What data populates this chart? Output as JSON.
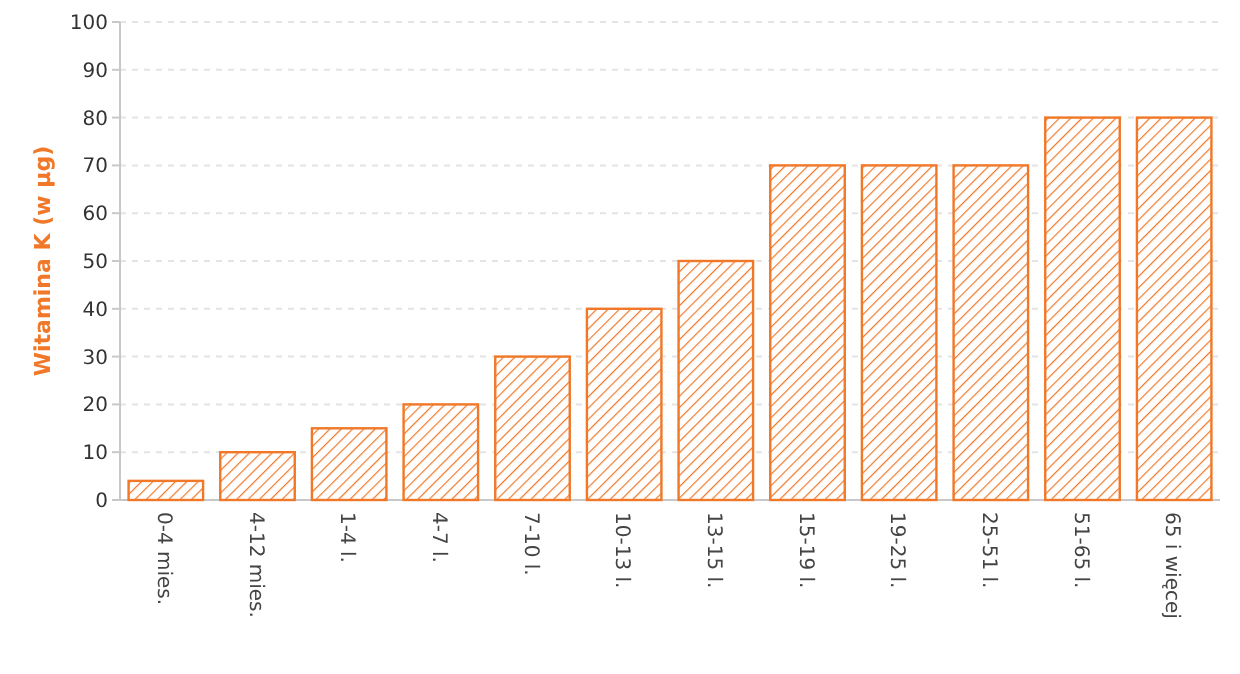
{
  "chart_data": {
    "type": "bar",
    "ylabel": "Witamina K (w µg)",
    "categories": [
      "0-4 mies.",
      "4-12 mies.",
      "1-4 l.",
      "4-7 l.",
      "7-10 l.",
      "10-13 l.",
      "13-15 l.",
      "15-19 l.",
      "19-25 l.",
      "25-51 l.",
      "51-65 l.",
      "65 i więcej"
    ],
    "values": [
      4,
      10,
      15,
      20,
      30,
      40,
      50,
      70,
      70,
      70,
      80,
      80
    ],
    "color": "#f07828",
    "ylim": [
      0,
      100
    ],
    "yticks": [
      0,
      10,
      20,
      30,
      40,
      50,
      60,
      70,
      80,
      90,
      100
    ],
    "grid": "y"
  }
}
